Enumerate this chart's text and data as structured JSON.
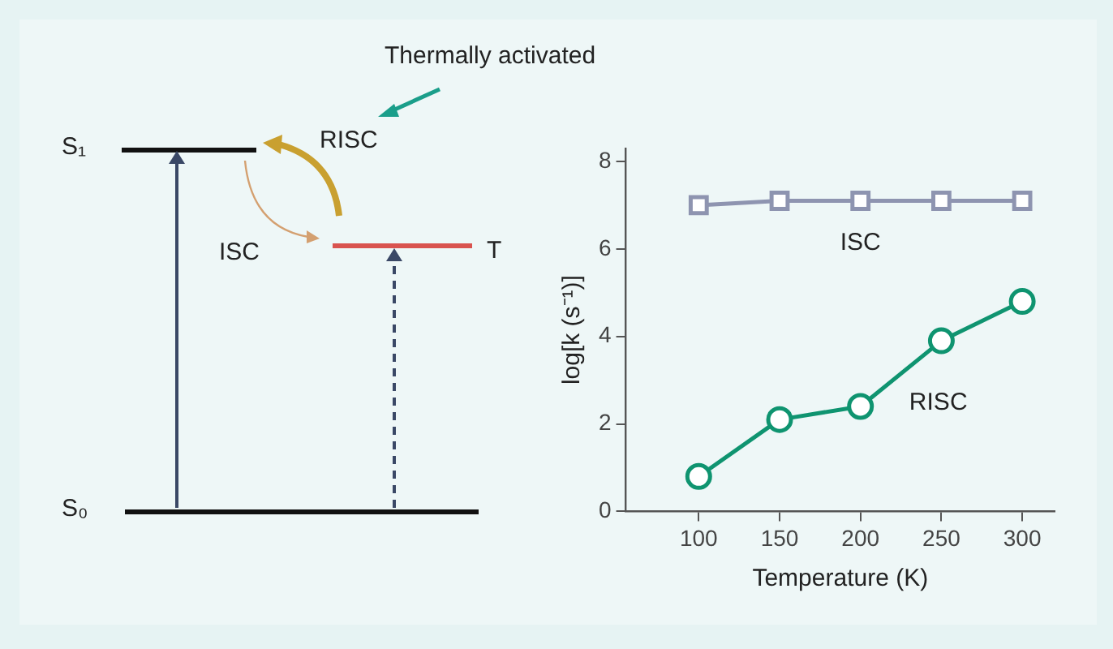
{
  "chart_data": [
    {
      "type": "other",
      "annotations": [
        "Thermally activated",
        "RISC",
        "ISC",
        "S₁",
        "T",
        "S₀"
      ]
    },
    {
      "type": "line",
      "xlabel": "Temperature (K)",
      "ylabel": "log[k (s⁻¹)]",
      "x": [
        100,
        150,
        200,
        250,
        300
      ],
      "xlim": [
        55,
        320
      ],
      "xticks": [
        100,
        150,
        200,
        250,
        300
      ],
      "ylim": [
        0,
        8.3
      ],
      "yticks": [
        0,
        2,
        4,
        6,
        8
      ],
      "grid": false,
      "legend": false,
      "series": [
        {
          "name": "ISC",
          "color": "#8e94b0",
          "marker": "square",
          "values": [
            7.0,
            7.1,
            7.1,
            7.1,
            7.1
          ]
        },
        {
          "name": "RISC",
          "color": "#0f9470",
          "marker": "circle",
          "values": [
            0.8,
            2.1,
            2.4,
            3.9,
            4.8
          ]
        }
      ]
    }
  ]
}
